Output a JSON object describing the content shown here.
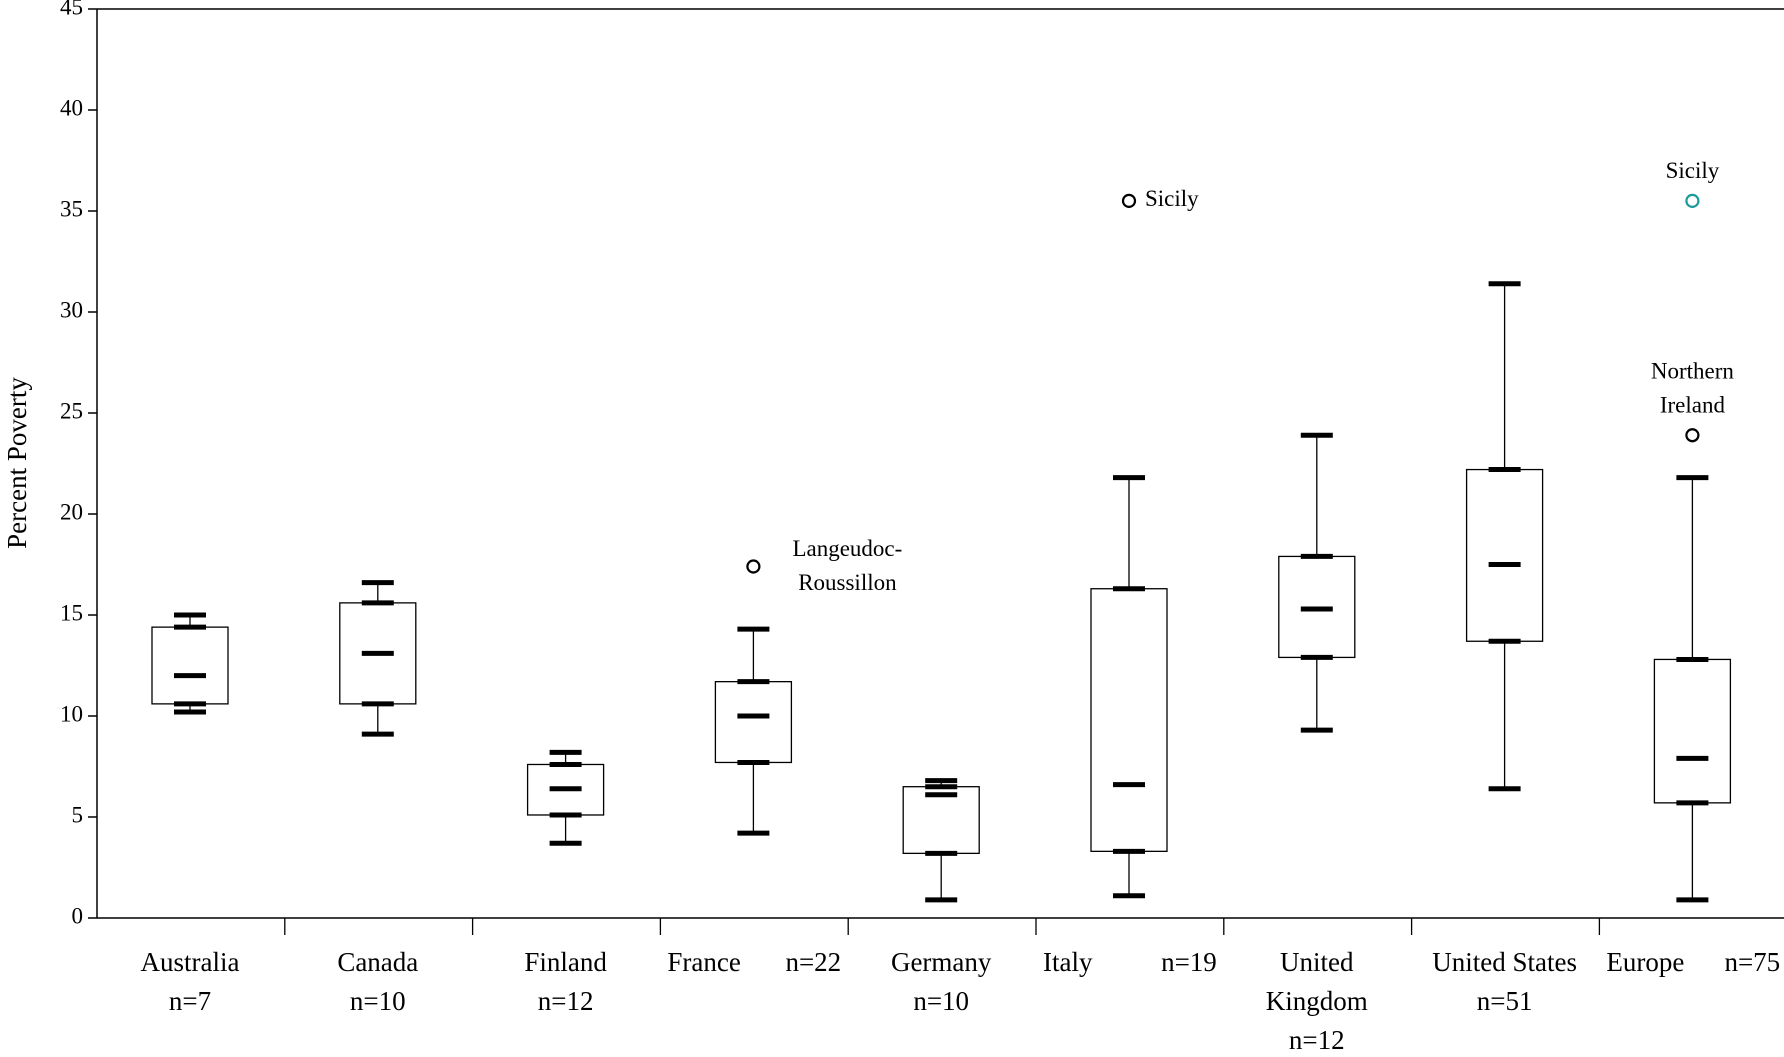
{
  "chart_data": {
    "type": "box",
    "ylabel": "Percent Poverty",
    "ylim": [
      0,
      45
    ],
    "yticks": [
      0,
      5,
      10,
      15,
      20,
      25,
      30,
      35,
      40,
      45
    ],
    "boxes": [
      {
        "label": [
          "Australia",
          "n=7"
        ],
        "low": 10.2,
        "q1": 10.6,
        "median": 12.0,
        "q3": 14.4,
        "high": 15.0,
        "outliers": []
      },
      {
        "label": [
          "Canada",
          "n=10"
        ],
        "low": 9.1,
        "q1": 10.6,
        "median": 13.1,
        "q3": 15.6,
        "high": 16.6,
        "outliers": []
      },
      {
        "label": [
          "Finland",
          "n=12"
        ],
        "low": 3.7,
        "q1": 5.1,
        "median": 6.4,
        "q3": 7.6,
        "high": 8.2,
        "outliers": []
      },
      {
        "label": [
          "France",
          "n=22"
        ],
        "low": 4.2,
        "q1": 7.7,
        "median": 10.0,
        "q3": 11.7,
        "high": 14.3,
        "outliers": [
          {
            "value": 17.4,
            "label": [
              "Langeudoc-",
              "Roussillon"
            ],
            "color": "#000000"
          }
        ]
      },
      {
        "label": [
          "Germany",
          "n=10"
        ],
        "low": 0.9,
        "q1": 3.2,
        "median": 6.1,
        "q3": 6.5,
        "high": 6.8,
        "outliers": []
      },
      {
        "label": [
          "Italy",
          "n=19"
        ],
        "low": 1.1,
        "q1": 3.3,
        "median": 6.6,
        "q3": 16.3,
        "high": 21.8,
        "outliers": [
          {
            "value": 35.5,
            "label": [
              "Sicily"
            ],
            "color": "#000000"
          }
        ]
      },
      {
        "label": [
          "United",
          "Kingdom",
          "n=12"
        ],
        "low": 9.3,
        "q1": 12.9,
        "median": 15.3,
        "q3": 17.9,
        "high": 23.9,
        "outliers": []
      },
      {
        "label": [
          "United States",
          "n=51"
        ],
        "low": 6.4,
        "q1": 13.7,
        "median": 17.5,
        "q3": 22.2,
        "high": 31.4,
        "outliers": []
      },
      {
        "label": [
          "Europe",
          "n=75"
        ],
        "low": 0.9,
        "q1": 5.7,
        "median": 7.9,
        "q3": 12.8,
        "high": 21.8,
        "outliers": [
          {
            "value": 35.5,
            "label": [
              "Sicily"
            ],
            "color": "#1a9a9a"
          },
          {
            "value": 23.9,
            "label": [
              "Northern",
              "Ireland"
            ],
            "color": "#000000"
          }
        ]
      }
    ]
  }
}
